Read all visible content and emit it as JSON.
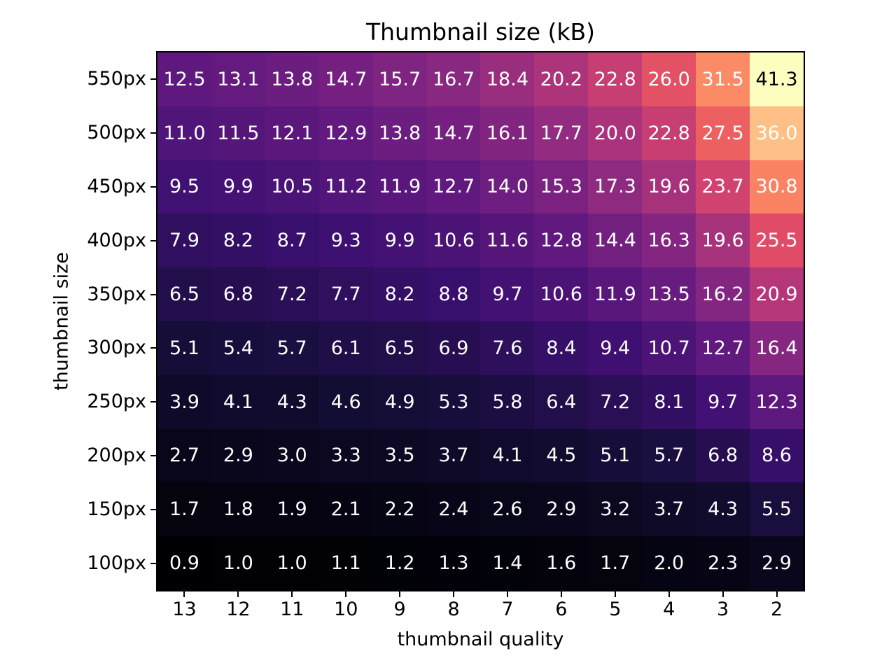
{
  "figure": {
    "background": "#ffffff"
  },
  "chart_data": {
    "type": "heatmap",
    "title": "Thumbnail size (kB)",
    "xlabel": "thumbnail quality",
    "ylabel": "thumbnail size",
    "units": "kB",
    "x_tick_labels": [
      "13",
      "12",
      "11",
      "10",
      "9",
      "8",
      "7",
      "6",
      "5",
      "4",
      "3",
      "2"
    ],
    "y_tick_labels": [
      "550px",
      "500px",
      "450px",
      "400px",
      "350px",
      "300px",
      "250px",
      "200px",
      "150px",
      "100px"
    ],
    "values": [
      [
        12.5,
        13.1,
        13.8,
        14.7,
        15.7,
        16.7,
        18.4,
        20.2,
        22.8,
        26.0,
        31.5,
        41.3
      ],
      [
        11.0,
        11.5,
        12.1,
        12.9,
        13.8,
        14.7,
        16.1,
        17.7,
        20.0,
        22.8,
        27.5,
        36.0
      ],
      [
        9.5,
        9.9,
        10.5,
        11.2,
        11.9,
        12.7,
        14.0,
        15.3,
        17.3,
        19.6,
        23.7,
        30.8
      ],
      [
        7.9,
        8.2,
        8.7,
        9.3,
        9.9,
        10.6,
        11.6,
        12.8,
        14.4,
        16.3,
        19.6,
        25.5
      ],
      [
        6.5,
        6.8,
        7.2,
        7.7,
        8.2,
        8.8,
        9.7,
        10.6,
        11.9,
        13.5,
        16.2,
        20.9
      ],
      [
        5.1,
        5.4,
        5.7,
        6.1,
        6.5,
        6.9,
        7.6,
        8.4,
        9.4,
        10.7,
        12.7,
        16.4
      ],
      [
        3.9,
        4.1,
        4.3,
        4.6,
        4.9,
        5.3,
        5.8,
        6.4,
        7.2,
        8.1,
        9.7,
        12.3
      ],
      [
        2.7,
        2.9,
        3.0,
        3.3,
        3.5,
        3.7,
        4.1,
        4.5,
        5.1,
        5.7,
        6.8,
        8.6
      ],
      [
        1.7,
        1.8,
        1.9,
        2.1,
        2.2,
        2.4,
        2.6,
        2.9,
        3.2,
        3.7,
        4.3,
        5.5
      ],
      [
        0.9,
        1.0,
        1.0,
        1.1,
        1.2,
        1.3,
        1.4,
        1.6,
        1.7,
        2.0,
        2.3,
        2.9
      ]
    ],
    "value_format": "one_decimal",
    "vmin": 0.9,
    "vmax": 41.3,
    "colormap": "magma",
    "colormap_stops": [
      [
        0.0,
        "#000004"
      ],
      [
        0.1,
        "#140e36"
      ],
      [
        0.2,
        "#3b0f70"
      ],
      [
        0.3,
        "#641a80"
      ],
      [
        0.4,
        "#8c2981"
      ],
      [
        0.5,
        "#b73779"
      ],
      [
        0.6,
        "#de4968"
      ],
      [
        0.7,
        "#f7705c"
      ],
      [
        0.8,
        "#fe9f6d"
      ],
      [
        0.9,
        "#fecf92"
      ],
      [
        1.0,
        "#fcfdbf"
      ]
    ],
    "annotation_text_colors": {
      "default": "#ffffff",
      "on_light": "#000000"
    },
    "black_text_threshold": 0.95,
    "legend": "none",
    "grid": false
  }
}
